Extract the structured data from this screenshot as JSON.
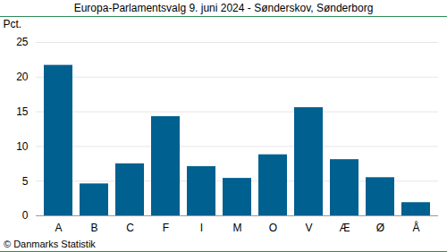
{
  "chart_data": {
    "type": "bar",
    "title": "Europa-Parlamentsvalg 9. juni 2024 - Sønderskov, Sønderborg",
    "y_label": "Pct.",
    "caption": "© Danmarks Statistik",
    "categories": [
      "A",
      "B",
      "C",
      "F",
      "I",
      "M",
      "O",
      "V",
      "Æ",
      "Ø",
      "Å"
    ],
    "values": [
      21.7,
      4.6,
      7.5,
      14.3,
      7.1,
      5.4,
      8.8,
      15.6,
      8.1,
      5.5,
      1.9
    ],
    "color": "#00608f",
    "ylim": [
      0,
      25
    ],
    "yticks": [
      0,
      5,
      10,
      15,
      20,
      25
    ],
    "grid": true
  }
}
